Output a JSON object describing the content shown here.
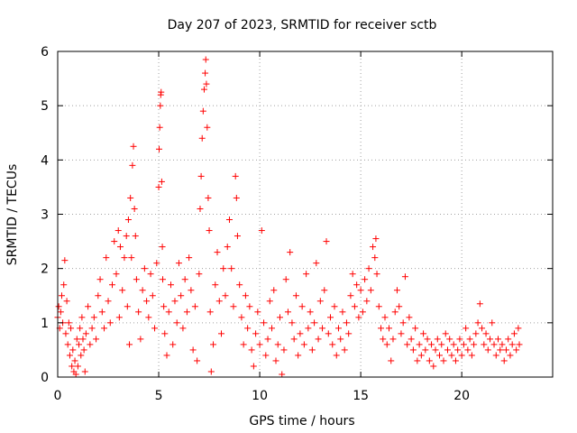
{
  "chart_data": {
    "type": "scatter",
    "title": "Day 207 of 2023, SRMTID for receiver sctb",
    "xlabel": "GPS time / hours",
    "ylabel": "SRMTID / TECUs",
    "xlim": [
      0,
      24.5
    ],
    "ylim": [
      0,
      6
    ],
    "xticks": [
      0,
      5,
      10,
      15,
      20
    ],
    "xtick_labels": [
      "0",
      "5",
      "10",
      "15",
      "20"
    ],
    "yticks": [
      0,
      1,
      2,
      3,
      4,
      5,
      6
    ],
    "ytick_labels": [
      "0",
      "1",
      "2",
      "3",
      "4",
      "5",
      "6"
    ],
    "grid": true,
    "marker": "+",
    "color": "#ff0000",
    "series": [
      {
        "name": "SRMTID",
        "points": [
          [
            0.0,
            1.1
          ],
          [
            0.05,
            1.3
          ],
          [
            0.1,
            0.9
          ],
          [
            0.15,
            1.2
          ],
          [
            0.2,
            1.5
          ],
          [
            0.25,
            1.0
          ],
          [
            0.3,
            1.7
          ],
          [
            0.35,
            2.15
          ],
          [
            0.4,
            0.8
          ],
          [
            0.45,
            1.4
          ],
          [
            0.5,
            0.6
          ],
          [
            0.55,
            1.0
          ],
          [
            0.6,
            0.4
          ],
          [
            0.65,
            0.9
          ],
          [
            0.7,
            0.2
          ],
          [
            0.75,
            0.5
          ],
          [
            0.8,
            0.1
          ],
          [
            0.85,
            0.3
          ],
          [
            0.9,
            0.05
          ],
          [
            0.95,
            0.7
          ],
          [
            1.0,
            0.2
          ],
          [
            1.05,
            0.6
          ],
          [
            1.1,
            0.9
          ],
          [
            1.15,
            0.4
          ],
          [
            1.2,
            1.1
          ],
          [
            1.25,
            0.7
          ],
          [
            1.3,
            0.5
          ],
          [
            1.35,
            0.1
          ],
          [
            1.4,
            0.8
          ],
          [
            1.5,
            1.3
          ],
          [
            1.6,
            0.6
          ],
          [
            1.7,
            0.9
          ],
          [
            1.8,
            1.1
          ],
          [
            1.9,
            0.7
          ],
          [
            2.0,
            1.5
          ],
          [
            2.1,
            1.8
          ],
          [
            2.2,
            1.2
          ],
          [
            2.3,
            0.9
          ],
          [
            2.4,
            2.2
          ],
          [
            2.5,
            1.4
          ],
          [
            2.6,
            1.0
          ],
          [
            2.7,
            1.7
          ],
          [
            2.8,
            2.5
          ],
          [
            2.9,
            1.9
          ],
          [
            3.0,
            2.7
          ],
          [
            3.05,
            1.1
          ],
          [
            3.1,
            2.4
          ],
          [
            3.2,
            1.6
          ],
          [
            3.3,
            2.2
          ],
          [
            3.4,
            2.6
          ],
          [
            3.45,
            1.3
          ],
          [
            3.5,
            2.9
          ],
          [
            3.55,
            0.6
          ],
          [
            3.6,
            3.3
          ],
          [
            3.65,
            2.2
          ],
          [
            3.7,
            3.9
          ],
          [
            3.75,
            4.25
          ],
          [
            3.8,
            3.1
          ],
          [
            3.85,
            2.6
          ],
          [
            3.9,
            1.8
          ],
          [
            4.0,
            1.2
          ],
          [
            4.1,
            0.7
          ],
          [
            4.2,
            1.6
          ],
          [
            4.3,
            2.0
          ],
          [
            4.4,
            1.4
          ],
          [
            4.5,
            1.1
          ],
          [
            4.6,
            1.9
          ],
          [
            4.7,
            1.5
          ],
          [
            4.8,
            0.9
          ],
          [
            4.9,
            2.1
          ],
          [
            5.0,
            3.5
          ],
          [
            5.02,
            4.2
          ],
          [
            5.05,
            4.6
          ],
          [
            5.08,
            5.0
          ],
          [
            5.1,
            5.2
          ],
          [
            5.12,
            5.25
          ],
          [
            5.15,
            3.6
          ],
          [
            5.18,
            2.4
          ],
          [
            5.2,
            1.8
          ],
          [
            5.25,
            1.3
          ],
          [
            5.3,
            0.8
          ],
          [
            5.4,
            0.4
          ],
          [
            5.5,
            1.2
          ],
          [
            5.6,
            1.7
          ],
          [
            5.7,
            0.6
          ],
          [
            5.8,
            1.4
          ],
          [
            5.9,
            1.0
          ],
          [
            6.0,
            2.1
          ],
          [
            6.1,
            1.5
          ],
          [
            6.2,
            0.9
          ],
          [
            6.3,
            1.8
          ],
          [
            6.4,
            1.2
          ],
          [
            6.5,
            2.2
          ],
          [
            6.6,
            1.6
          ],
          [
            6.7,
            0.5
          ],
          [
            6.8,
            1.3
          ],
          [
            6.9,
            0.3
          ],
          [
            7.0,
            1.9
          ],
          [
            7.05,
            3.1
          ],
          [
            7.1,
            3.7
          ],
          [
            7.15,
            4.4
          ],
          [
            7.2,
            4.9
          ],
          [
            7.25,
            5.3
          ],
          [
            7.3,
            5.6
          ],
          [
            7.33,
            5.85
          ],
          [
            7.36,
            5.4
          ],
          [
            7.4,
            4.6
          ],
          [
            7.45,
            3.3
          ],
          [
            7.5,
            2.7
          ],
          [
            7.55,
            1.2
          ],
          [
            7.6,
            0.1
          ],
          [
            7.7,
            0.6
          ],
          [
            7.8,
            1.7
          ],
          [
            7.9,
            2.3
          ],
          [
            8.0,
            1.4
          ],
          [
            8.1,
            0.8
          ],
          [
            8.2,
            2.0
          ],
          [
            8.3,
            1.5
          ],
          [
            8.4,
            2.4
          ],
          [
            8.5,
            2.9
          ],
          [
            8.6,
            2.0
          ],
          [
            8.7,
            1.3
          ],
          [
            8.8,
            3.7
          ],
          [
            8.85,
            3.3
          ],
          [
            8.9,
            2.6
          ],
          [
            9.0,
            1.7
          ],
          [
            9.1,
            1.1
          ],
          [
            9.2,
            0.6
          ],
          [
            9.3,
            1.5
          ],
          [
            9.4,
            0.9
          ],
          [
            9.5,
            1.3
          ],
          [
            9.6,
            0.5
          ],
          [
            9.7,
            0.2
          ],
          [
            9.8,
            0.8
          ],
          [
            9.9,
            1.2
          ],
          [
            10.0,
            0.6
          ],
          [
            10.1,
            2.7
          ],
          [
            10.2,
            1.0
          ],
          [
            10.3,
            0.4
          ],
          [
            10.4,
            0.7
          ],
          [
            10.5,
            1.4
          ],
          [
            10.6,
            0.9
          ],
          [
            10.7,
            1.6
          ],
          [
            10.8,
            0.3
          ],
          [
            10.9,
            0.6
          ],
          [
            11.0,
            1.1
          ],
          [
            11.1,
            0.05
          ],
          [
            11.2,
            0.5
          ],
          [
            11.3,
            1.8
          ],
          [
            11.4,
            1.2
          ],
          [
            11.5,
            2.3
          ],
          [
            11.6,
            1.0
          ],
          [
            11.7,
            0.7
          ],
          [
            11.8,
            1.5
          ],
          [
            11.9,
            0.4
          ],
          [
            12.0,
            0.8
          ],
          [
            12.1,
            1.3
          ],
          [
            12.2,
            0.6
          ],
          [
            12.3,
            1.9
          ],
          [
            12.4,
            0.9
          ],
          [
            12.5,
            1.2
          ],
          [
            12.6,
            0.5
          ],
          [
            12.7,
            1.0
          ],
          [
            12.8,
            2.1
          ],
          [
            12.9,
            0.7
          ],
          [
            13.0,
            1.4
          ],
          [
            13.1,
            0.9
          ],
          [
            13.2,
            1.6
          ],
          [
            13.3,
            2.5
          ],
          [
            13.4,
            0.8
          ],
          [
            13.5,
            1.1
          ],
          [
            13.6,
            0.6
          ],
          [
            13.7,
            1.3
          ],
          [
            13.8,
            0.4
          ],
          [
            13.9,
            0.9
          ],
          [
            14.0,
            0.7
          ],
          [
            14.1,
            1.2
          ],
          [
            14.2,
            0.5
          ],
          [
            14.3,
            1.0
          ],
          [
            14.4,
            0.8
          ],
          [
            14.5,
            1.5
          ],
          [
            14.6,
            1.9
          ],
          [
            14.7,
            1.3
          ],
          [
            14.8,
            1.7
          ],
          [
            14.9,
            1.1
          ],
          [
            15.0,
            1.6
          ],
          [
            15.1,
            1.2
          ],
          [
            15.2,
            1.8
          ],
          [
            15.3,
            1.4
          ],
          [
            15.4,
            2.0
          ],
          [
            15.5,
            1.6
          ],
          [
            15.6,
            2.4
          ],
          [
            15.7,
            2.2
          ],
          [
            15.75,
            2.55
          ],
          [
            15.8,
            1.9
          ],
          [
            15.9,
            1.3
          ],
          [
            16.0,
            0.9
          ],
          [
            16.1,
            0.7
          ],
          [
            16.2,
            1.1
          ],
          [
            16.3,
            0.6
          ],
          [
            16.4,
            0.9
          ],
          [
            16.5,
            0.3
          ],
          [
            16.6,
            0.7
          ],
          [
            16.7,
            1.2
          ],
          [
            16.8,
            1.6
          ],
          [
            16.9,
            1.3
          ],
          [
            17.0,
            0.8
          ],
          [
            17.1,
            1.0
          ],
          [
            17.2,
            1.85
          ],
          [
            17.3,
            0.6
          ],
          [
            17.4,
            1.1
          ],
          [
            17.5,
            0.7
          ],
          [
            17.6,
            0.5
          ],
          [
            17.7,
            0.9
          ],
          [
            17.8,
            0.3
          ],
          [
            17.9,
            0.6
          ],
          [
            18.0,
            0.4
          ],
          [
            18.1,
            0.8
          ],
          [
            18.2,
            0.5
          ],
          [
            18.3,
            0.7
          ],
          [
            18.4,
            0.3
          ],
          [
            18.5,
            0.6
          ],
          [
            18.6,
            0.2
          ],
          [
            18.7,
            0.5
          ],
          [
            18.8,
            0.7
          ],
          [
            18.9,
            0.4
          ],
          [
            19.0,
            0.6
          ],
          [
            19.1,
            0.3
          ],
          [
            19.2,
            0.8
          ],
          [
            19.3,
            0.5
          ],
          [
            19.4,
            0.7
          ],
          [
            19.5,
            0.4
          ],
          [
            19.6,
            0.6
          ],
          [
            19.7,
            0.3
          ],
          [
            19.8,
            0.5
          ],
          [
            19.9,
            0.7
          ],
          [
            20.0,
            0.4
          ],
          [
            20.1,
            0.6
          ],
          [
            20.2,
            0.9
          ],
          [
            20.3,
            0.5
          ],
          [
            20.4,
            0.7
          ],
          [
            20.5,
            0.4
          ],
          [
            20.6,
            0.6
          ],
          [
            20.7,
            0.8
          ],
          [
            20.8,
            1.0
          ],
          [
            20.9,
            1.35
          ],
          [
            21.0,
            0.9
          ],
          [
            21.1,
            0.6
          ],
          [
            21.2,
            0.8
          ],
          [
            21.3,
            0.5
          ],
          [
            21.4,
            0.7
          ],
          [
            21.5,
            1.0
          ],
          [
            21.6,
            0.6
          ],
          [
            21.7,
            0.4
          ],
          [
            21.8,
            0.7
          ],
          [
            21.9,
            0.5
          ],
          [
            22.0,
            0.6
          ],
          [
            22.1,
            0.3
          ],
          [
            22.2,
            0.5
          ],
          [
            22.3,
            0.7
          ],
          [
            22.4,
            0.4
          ],
          [
            22.5,
            0.6
          ],
          [
            22.6,
            0.8
          ],
          [
            22.7,
            0.5
          ],
          [
            22.8,
            0.9
          ],
          [
            22.85,
            0.6
          ]
        ]
      }
    ]
  }
}
